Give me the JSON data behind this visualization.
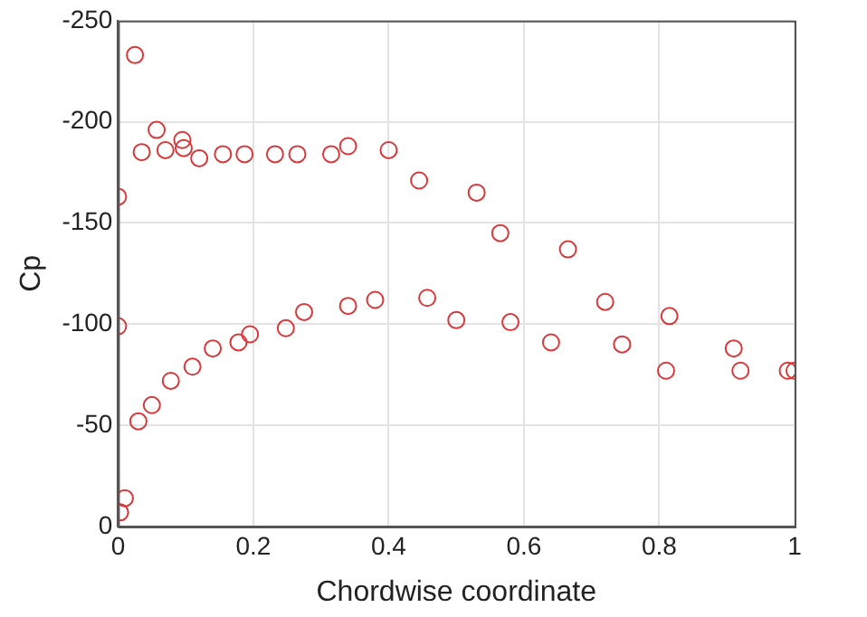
{
  "chart_data": {
    "type": "scatter",
    "xlabel": "Chordwise coordinate",
    "ylabel": "Cp",
    "xlim": [
      0,
      1
    ],
    "xticks": [
      0,
      0.2,
      0.4,
      0.6,
      0.8,
      1
    ],
    "ylim": [
      0,
      -250
    ],
    "yticks": [
      0,
      -50,
      -100,
      -150,
      -200,
      -250
    ],
    "grid": true,
    "legend": false,
    "marker": "circle",
    "series": [
      {
        "color": "#d9383a",
        "x": [
          0.0,
          0.025,
          0.035,
          0.057,
          0.07,
          0.095,
          0.097,
          0.12,
          0.155,
          0.187,
          0.232,
          0.265,
          0.315,
          0.34,
          0.4,
          0.445,
          0.53,
          0.565,
          0.665,
          0.72,
          0.815,
          0.91,
          0.99,
          0,
          0.003,
          0.01,
          0.03,
          0.05,
          0.078,
          0.11,
          0.14,
          0.178,
          0.195,
          0.248,
          0.275,
          0.34,
          0.38,
          0.457,
          0.5,
          0.58,
          0.64,
          0.745,
          0.81,
          0.92,
          1.0
        ],
        "values": [
          -163,
          -233,
          -185,
          -196,
          -186,
          -191,
          -187,
          -182,
          -184,
          -184,
          -184,
          -184,
          -184,
          -188,
          -186,
          -171,
          -165,
          -145,
          -137,
          -111,
          -104,
          -88,
          -77,
          -99,
          -7,
          -14,
          -52,
          -60,
          -72,
          -79,
          -88,
          -91,
          -95,
          -98,
          -106,
          -109,
          -112,
          -113,
          -102,
          -101,
          -91,
          -90,
          -77,
          -77,
          -77
        ]
      }
    ]
  }
}
